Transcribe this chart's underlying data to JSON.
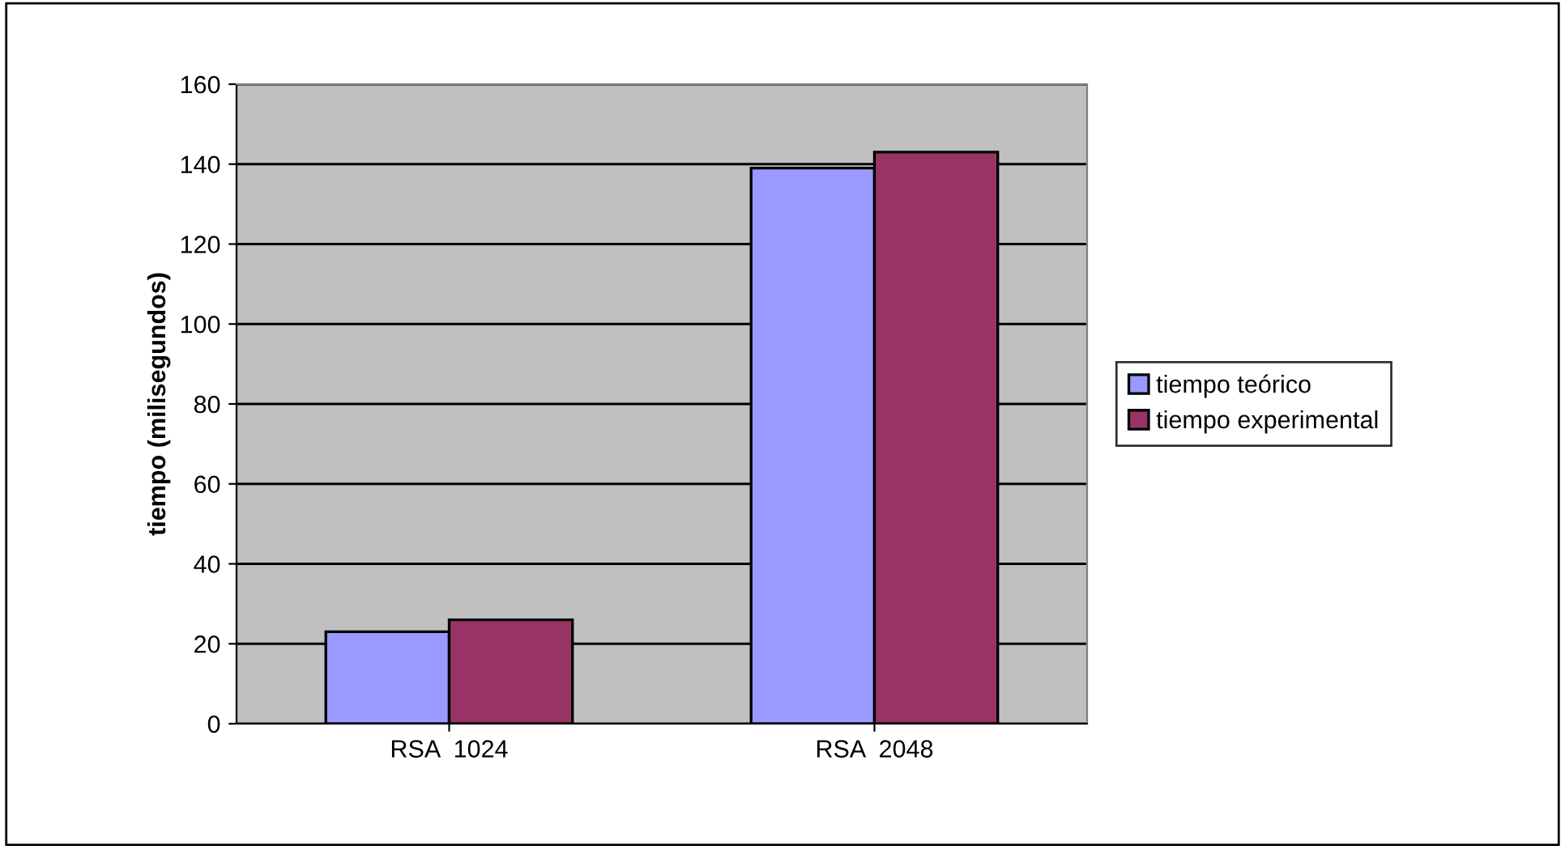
{
  "chart_data": {
    "type": "bar",
    "ylabel": "tiempo (milisegundos)",
    "categories": [
      "RSA  1024",
      "RSA  2048"
    ],
    "series": [
      {
        "name": "tiempo teórico",
        "color": "#9999ff",
        "values": [
          23,
          139
        ]
      },
      {
        "name": "tiempo experimental",
        "color": "#993366",
        "values": [
          26,
          143
        ]
      }
    ],
    "ylim": [
      0,
      160
    ],
    "yticks": [
      0,
      20,
      40,
      60,
      80,
      100,
      120,
      140,
      160
    ],
    "grid": "y",
    "legend": "right"
  }
}
